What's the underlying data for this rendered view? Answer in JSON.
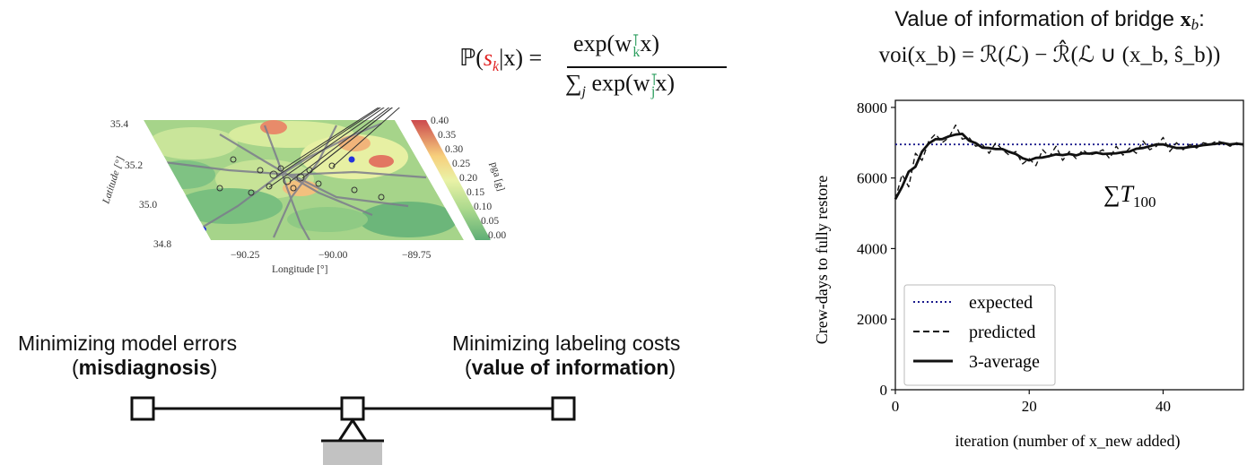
{
  "formula_top": {
    "prob": "ℙ(",
    "sk": "s",
    "k": "k",
    "given": "|x) =",
    "numerator": "exp(w",
    "numerator_tail": "x)",
    "denominator": "∑",
    "denominator_j": "j",
    "denominator_exp": "exp(w",
    "denominator_tail": "x)"
  },
  "voi_title": {
    "line1": "Value of information of bridge ",
    "line1_var": "x",
    "line1_sub": "b",
    "line1_end": ":",
    "line2": "voi(x_b) = ℛ(ℒ) − ℛ̂(ℒ ∪ (x_b, ŝ_b))"
  },
  "map": {
    "lat_ticks": [
      "35.4",
      "35.2",
      "35.0",
      "34.8"
    ],
    "lon_ticks": [
      "−90.25",
      "−90.00",
      "−89.75"
    ],
    "lat_label": "Latitude [°]",
    "lon_label": "Longitude [°]",
    "colorbar_ticks": [
      "0.40",
      "0.35",
      "0.30",
      "0.25",
      "0.20",
      "0.15",
      "0.10",
      "0.05",
      "0.00"
    ],
    "colorbar_label": "pga [g]"
  },
  "balance": {
    "left_line1": "Minimizing model errors",
    "left_open": "(",
    "left_bold": "misdiagnosis",
    "left_close": ")",
    "right_line1": "Minimizing labeling costs",
    "right_open": "(",
    "right_bold": "value of information",
    "right_close": ")"
  },
  "plot_annotation": "∑T",
  "plot_annotation_sub": "100",
  "chart_data": {
    "type": "line",
    "xlabel": "iteration (number of x_new added)",
    "ylabel": "Crew-days to fully restore",
    "xlim": [
      0,
      52
    ],
    "ylim": [
      0,
      8200
    ],
    "xticks": [
      "0",
      "20",
      "40"
    ],
    "yticks": [
      "0",
      "2000",
      "4000",
      "6000",
      "8000"
    ],
    "legend_position": "lower-left",
    "series": [
      {
        "name": "expected",
        "style": "dotted",
        "color": "#1a1a8c",
        "x": [
          0,
          52
        ],
        "y": [
          6950,
          6950
        ]
      },
      {
        "name": "predicted",
        "style": "dashed",
        "color": "#111111",
        "x": [
          0,
          1,
          2,
          3,
          4,
          5,
          6,
          7,
          8,
          9,
          10,
          11,
          12,
          13,
          14,
          15,
          16,
          17,
          18,
          19,
          20,
          21,
          22,
          23,
          24,
          25,
          26,
          27,
          28,
          29,
          30,
          31,
          32,
          33,
          34,
          35,
          36,
          37,
          38,
          39,
          40,
          41,
          42,
          43,
          44,
          45,
          46,
          47,
          48,
          49,
          50,
          51,
          52
        ],
        "y": [
          5400,
          6100,
          5750,
          6700,
          6500,
          7050,
          7250,
          7000,
          7150,
          7500,
          7100,
          7150,
          6900,
          6950,
          6700,
          7000,
          6800,
          6650,
          6750,
          6400,
          6550,
          6350,
          6800,
          6600,
          6900,
          6500,
          6750,
          6550,
          6800,
          6650,
          6700,
          6800,
          6550,
          6900,
          6650,
          6850,
          6700,
          7050,
          6800,
          6900,
          7150,
          6750,
          7000,
          6800,
          6950,
          6850,
          7000,
          6950,
          7050,
          7000,
          6900,
          7000,
          6900
        ]
      },
      {
        "name": "3-average",
        "style": "solid",
        "color": "#111111",
        "x": [
          0,
          1,
          2,
          3,
          4,
          5,
          6,
          7,
          8,
          9,
          10,
          11,
          12,
          13,
          14,
          15,
          16,
          17,
          18,
          19,
          20,
          21,
          22,
          23,
          24,
          25,
          26,
          27,
          28,
          29,
          30,
          31,
          32,
          33,
          34,
          35,
          36,
          37,
          38,
          39,
          40,
          41,
          42,
          43,
          44,
          45,
          46,
          47,
          48,
          49,
          50,
          51,
          52
        ],
        "y": [
          5400,
          5750,
          6180,
          6320,
          6750,
          6980,
          7100,
          7100,
          7180,
          7230,
          7250,
          7060,
          6990,
          6860,
          6850,
          6820,
          6820,
          6740,
          6680,
          6560,
          6500,
          6570,
          6580,
          6620,
          6670,
          6650,
          6680,
          6640,
          6700,
          6690,
          6720,
          6680,
          6690,
          6700,
          6730,
          6750,
          6830,
          6850,
          6900,
          6950,
          6950,
          6900,
          6850,
          6850,
          6880,
          6900,
          6930,
          6950,
          6970,
          6990,
          6950,
          6970,
          6950
        ]
      }
    ]
  }
}
